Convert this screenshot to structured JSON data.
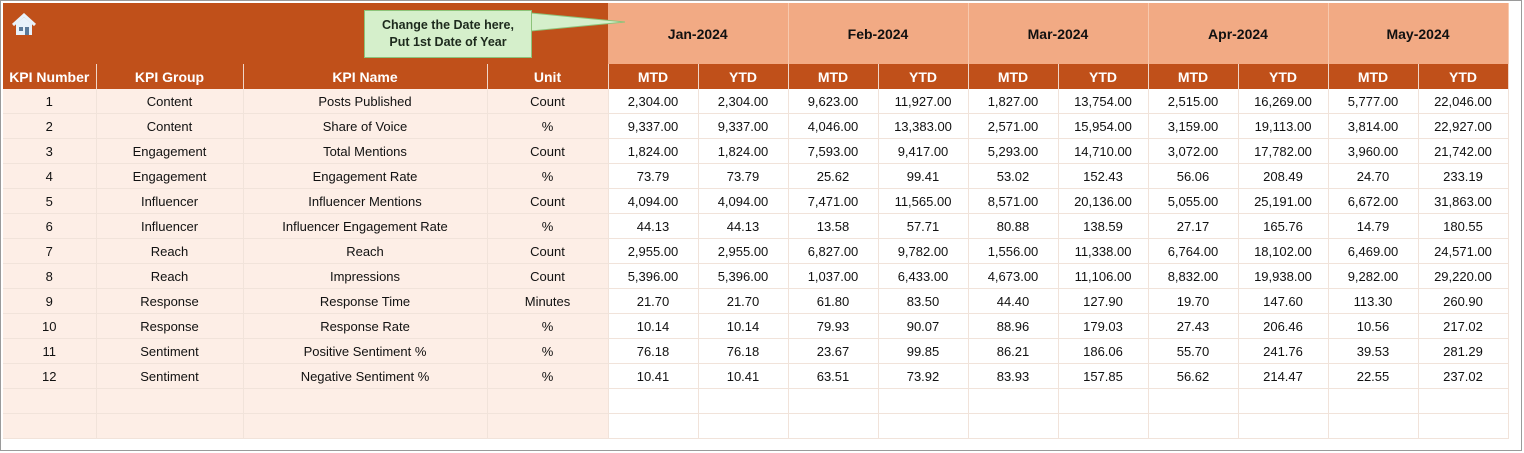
{
  "header": {
    "callout_line1": "Change the Date here,",
    "callout_line2": "Put 1st Date of Year",
    "home_icon": "home-icon",
    "months": [
      "Jan-2024",
      "Feb-2024",
      "Mar-2024",
      "Apr-2024",
      "May-2024"
    ]
  },
  "columns": {
    "kpi_number": "KPI Number",
    "kpi_group": "KPI Group",
    "kpi_name": "KPI Name",
    "unit": "Unit",
    "mtd": "MTD",
    "ytd": "YTD"
  },
  "rows": [
    {
      "num": "1",
      "group": "Content",
      "name": "Posts Published",
      "unit": "Count",
      "values": [
        "2,304.00",
        "2,304.00",
        "9,623.00",
        "11,927.00",
        "1,827.00",
        "13,754.00",
        "2,515.00",
        "16,269.00",
        "5,777.00",
        "22,046.00"
      ]
    },
    {
      "num": "2",
      "group": "Content",
      "name": "Share of Voice",
      "unit": "%",
      "values": [
        "9,337.00",
        "9,337.00",
        "4,046.00",
        "13,383.00",
        "2,571.00",
        "15,954.00",
        "3,159.00",
        "19,113.00",
        "3,814.00",
        "22,927.00"
      ]
    },
    {
      "num": "3",
      "group": "Engagement",
      "name": "Total Mentions",
      "unit": "Count",
      "values": [
        "1,824.00",
        "1,824.00",
        "7,593.00",
        "9,417.00",
        "5,293.00",
        "14,710.00",
        "3,072.00",
        "17,782.00",
        "3,960.00",
        "21,742.00"
      ]
    },
    {
      "num": "4",
      "group": "Engagement",
      "name": "Engagement Rate",
      "unit": "%",
      "values": [
        "73.79",
        "73.79",
        "25.62",
        "99.41",
        "53.02",
        "152.43",
        "56.06",
        "208.49",
        "24.70",
        "233.19"
      ]
    },
    {
      "num": "5",
      "group": "Influencer",
      "name": "Influencer Mentions",
      "unit": "Count",
      "values": [
        "4,094.00",
        "4,094.00",
        "7,471.00",
        "11,565.00",
        "8,571.00",
        "20,136.00",
        "5,055.00",
        "25,191.00",
        "6,672.00",
        "31,863.00"
      ]
    },
    {
      "num": "6",
      "group": "Influencer",
      "name": "Influencer Engagement Rate",
      "unit": "%",
      "values": [
        "44.13",
        "44.13",
        "13.58",
        "57.71",
        "80.88",
        "138.59",
        "27.17",
        "165.76",
        "14.79",
        "180.55"
      ]
    },
    {
      "num": "7",
      "group": "Reach",
      "name": "Reach",
      "unit": "Count",
      "values": [
        "2,955.00",
        "2,955.00",
        "6,827.00",
        "9,782.00",
        "1,556.00",
        "11,338.00",
        "6,764.00",
        "18,102.00",
        "6,469.00",
        "24,571.00"
      ]
    },
    {
      "num": "8",
      "group": "Reach",
      "name": "Impressions",
      "unit": "Count",
      "values": [
        "5,396.00",
        "5,396.00",
        "1,037.00",
        "6,433.00",
        "4,673.00",
        "11,106.00",
        "8,832.00",
        "19,938.00",
        "9,282.00",
        "29,220.00"
      ]
    },
    {
      "num": "9",
      "group": "Response",
      "name": "Response Time",
      "unit": "Minutes",
      "values": [
        "21.70",
        "21.70",
        "61.80",
        "83.50",
        "44.40",
        "127.90",
        "19.70",
        "147.60",
        "113.30",
        "260.90"
      ]
    },
    {
      "num": "10",
      "group": "Response",
      "name": "Response Rate",
      "unit": "%",
      "values": [
        "10.14",
        "10.14",
        "79.93",
        "90.07",
        "88.96",
        "179.03",
        "27.43",
        "206.46",
        "10.56",
        "217.02"
      ]
    },
    {
      "num": "11",
      "group": "Sentiment",
      "name": "Positive Sentiment %",
      "unit": "%",
      "values": [
        "76.18",
        "76.18",
        "23.67",
        "99.85",
        "86.21",
        "186.06",
        "55.70",
        "241.76",
        "39.53",
        "281.29"
      ]
    },
    {
      "num": "12",
      "group": "Sentiment",
      "name": "Negative Sentiment %",
      "unit": "%",
      "values": [
        "10.41",
        "10.41",
        "63.51",
        "73.92",
        "83.93",
        "157.85",
        "56.62",
        "214.47",
        "22.55",
        "237.02"
      ]
    }
  ],
  "colors": {
    "band": "#C0501A",
    "month_bg": "#F2AA84",
    "left_row_bg": "#FDEEE6",
    "callout_bg": "#D5EFCB"
  }
}
